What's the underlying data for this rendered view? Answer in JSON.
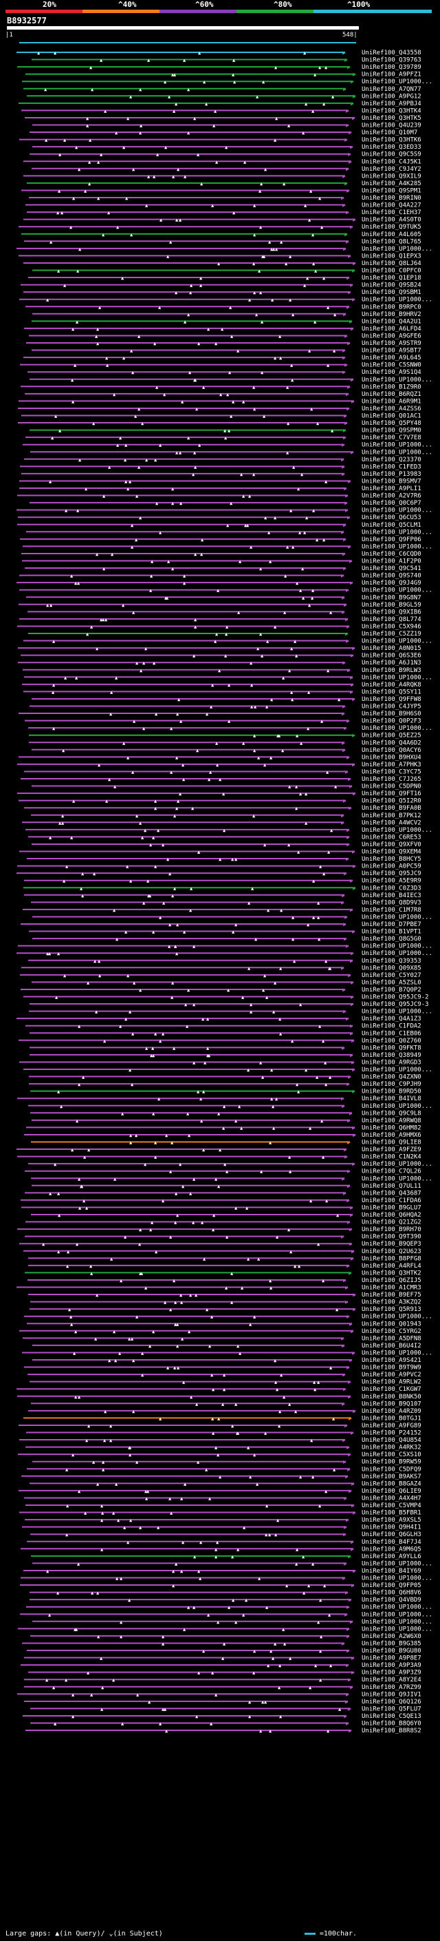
{
  "header": {
    "query_id": "B8932577",
    "legend_labels": [
      "20%",
      "^40%",
      "^60%",
      "^80%",
      "^100%"
    ],
    "legend_colors": [
      "#e8232d",
      "#f27b1e",
      "#8a3db8",
      "#22a83b",
      "#2ebcd8"
    ]
  },
  "axis": {
    "start_label": "|1",
    "end_label": "548|"
  },
  "footer": {
    "gap_text": "Large gaps: ▲(in Query)/ ⌄(in Subject)",
    "scale_text": "=100char."
  },
  "chart_data": {
    "type": "alignment",
    "query_length": 548,
    "title": "B8932577",
    "hits": [
      {
        "id": "UniRef100_Q43558",
        "identity": 100
      },
      {
        "id": "UniRef100_Q39763",
        "identity": 80
      },
      {
        "id": "UniRef100_Q39789",
        "identity": 80
      },
      {
        "id": "UniRef100_A9PFZ1",
        "identity": 80
      },
      {
        "id": "UniRef100_UP1000...",
        "identity": 80
      },
      {
        "id": "UniRef100_A7QN77",
        "identity": 80
      },
      {
        "id": "UniRef100_A9PG12",
        "identity": 80
      },
      {
        "id": "UniRef100_A9PBJ4",
        "identity": 80
      },
      {
        "id": "UniRef100_Q3HTK4",
        "identity": 60
      },
      {
        "id": "UniRef100_Q3HTK5",
        "identity": 60
      },
      {
        "id": "UniRef100_Q4U239",
        "identity": 60
      },
      {
        "id": "UniRef100_Q10M7",
        "identity": 60
      },
      {
        "id": "UniRef100_Q3HTK6",
        "identity": 60
      },
      {
        "id": "UniRef100_Q3ED33",
        "identity": 60
      },
      {
        "id": "UniRef100_Q9C5S9",
        "identity": 60
      },
      {
        "id": "UniRef100_C4J5K1",
        "identity": 60
      },
      {
        "id": "UniRef100_C9J4Y2",
        "identity": 60
      },
      {
        "id": "UniRef100_Q9XIL9",
        "identity": 60
      },
      {
        "id": "UniRef100_A4K285",
        "identity": 80
      },
      {
        "id": "UniRef100_Q9SPM1",
        "identity": 60
      },
      {
        "id": "UniRef100_B9RIN0",
        "identity": 60
      },
      {
        "id": "UniRef100_Q4A227",
        "identity": 60
      },
      {
        "id": "UniRef100_C1EH37",
        "identity": 60
      },
      {
        "id": "UniRef100_A4S0T0",
        "identity": 60
      },
      {
        "id": "UniRef100_Q9TUK5",
        "identity": 60
      },
      {
        "id": "UniRef100_A4L605",
        "identity": 80
      },
      {
        "id": "UniRef100_Q8L765",
        "identity": 60
      },
      {
        "id": "UniRef100_UP1000...",
        "identity": 60
      },
      {
        "id": "UniRef100_Q1EPX3",
        "identity": 60
      },
      {
        "id": "UniRef100_Q8LJ64",
        "identity": 60
      },
      {
        "id": "UniRef100_C0PFC0",
        "identity": 80
      },
      {
        "id": "UniRef100_Q1EP18",
        "identity": 60
      },
      {
        "id": "UniRef100_Q9SB24",
        "identity": 60
      },
      {
        "id": "UniRef100_Q9SBM1",
        "identity": 60
      },
      {
        "id": "UniRef100_UP1000...",
        "identity": 60
      },
      {
        "id": "UniRef100_B9RPC0",
        "identity": 60
      },
      {
        "id": "UniRef100_B9HRV2",
        "identity": 60
      },
      {
        "id": "UniRef100_Q4A2U1",
        "identity": 80
      },
      {
        "id": "UniRef100_A6LFD4",
        "identity": 60
      },
      {
        "id": "UniRef100_A9GFE6",
        "identity": 60
      },
      {
        "id": "UniRef100_A9STR9",
        "identity": 60
      },
      {
        "id": "UniRef100_A9SBT7",
        "identity": 60
      },
      {
        "id": "UniRef100_A9L645",
        "identity": 60
      },
      {
        "id": "UniRef100_C5SNW0",
        "identity": 60
      },
      {
        "id": "UniRef100_A9S1Q4",
        "identity": 60
      },
      {
        "id": "UniRef100_UP1000...",
        "identity": 60
      },
      {
        "id": "UniRef100_B1Z9R0",
        "identity": 60
      },
      {
        "id": "UniRef100_B6RQZ1",
        "identity": 60
      },
      {
        "id": "UniRef100_A6R9M1",
        "identity": 60
      },
      {
        "id": "UniRef100_A4ZSS6",
        "identity": 60
      },
      {
        "id": "UniRef100_Q01AC1",
        "identity": 60
      },
      {
        "id": "UniRef100_Q5PY48",
        "identity": 60
      },
      {
        "id": "UniRef100_Q9SPM0",
        "identity": 80
      },
      {
        "id": "UniRef100_C7V7E8",
        "identity": 60
      },
      {
        "id": "UniRef100_UP1000...",
        "identity": 60
      },
      {
        "id": "UniRef100_UP1000...",
        "identity": 60
      },
      {
        "id": "UniRef100_Q23370",
        "identity": 60
      },
      {
        "id": "UniRef100_C1FED3",
        "identity": 60
      },
      {
        "id": "UniRef100_P13983",
        "identity": 60
      },
      {
        "id": "UniRef100_B9SMV7",
        "identity": 60
      },
      {
        "id": "UniRef100_A9PLI1",
        "identity": 60
      },
      {
        "id": "UniRef100_A2V7R6",
        "identity": 60
      },
      {
        "id": "UniRef100_Q0C6P7",
        "identity": 60
      },
      {
        "id": "UniRef100_UP1000...",
        "identity": 60
      },
      {
        "id": "UniRef100_Q6CU53",
        "identity": 60
      },
      {
        "id": "UniRef100_Q5CLM1",
        "identity": 60
      },
      {
        "id": "UniRef100_UP1000...",
        "identity": 60
      },
      {
        "id": "UniRef100_Q9FP06",
        "identity": 60
      },
      {
        "id": "UniRef100_UP1000...",
        "identity": 60
      },
      {
        "id": "UniRef100_C6CQD0",
        "identity": 60
      },
      {
        "id": "UniRef100_A1F2P0",
        "identity": 60
      },
      {
        "id": "UniRef100_Q9C541",
        "identity": 60
      },
      {
        "id": "UniRef100_Q9S740",
        "identity": 60
      },
      {
        "id": "UniRef100_Q9J4G9",
        "identity": 60
      },
      {
        "id": "UniRef100_UP1000...",
        "identity": 60
      },
      {
        "id": "UniRef100_B9G8N7",
        "identity": 60
      },
      {
        "id": "UniRef100_B9GL59",
        "identity": 60
      },
      {
        "id": "UniRef100_Q9XIB6",
        "identity": 60
      },
      {
        "id": "UniRef100_Q8L774",
        "identity": 60
      },
      {
        "id": "UniRef100_C5X946",
        "identity": 60
      },
      {
        "id": "UniRef100_C5ZZ19",
        "identity": 80
      },
      {
        "id": "UniRef100_UP1000...",
        "identity": 60
      },
      {
        "id": "UniRef100_A0N015",
        "identity": 60
      },
      {
        "id": "UniRef100_Q6S3E6",
        "identity": 60
      },
      {
        "id": "UniRef100_A6J1N3",
        "identity": 60
      },
      {
        "id": "UniRef100_B9RLW3",
        "identity": 60
      },
      {
        "id": "UniRef100_UP1000...",
        "identity": 60
      },
      {
        "id": "UniRef100_A4RQK8",
        "identity": 60
      },
      {
        "id": "UniRef100_Q5SY11",
        "identity": 60
      },
      {
        "id": "UniRef100_Q9FFW8",
        "identity": 60
      },
      {
        "id": "UniRef100_C4JYP5",
        "identity": 60
      },
      {
        "id": "UniRef100_B9H6S0",
        "identity": 60
      },
      {
        "id": "UniRef100_Q0P2F3",
        "identity": 60
      },
      {
        "id": "UniRef100_UP1000...",
        "identity": 60
      },
      {
        "id": "UniRef100_Q5EZ25",
        "identity": 80
      },
      {
        "id": "UniRef100_Q4A6D2",
        "identity": 60
      },
      {
        "id": "UniRef100_Q0ACY6",
        "identity": 60
      },
      {
        "id": "UniRef100_B9HXU4",
        "identity": 60
      },
      {
        "id": "UniRef100_A7PHK3",
        "identity": 60
      },
      {
        "id": "UniRef100_C3YC75",
        "identity": 60
      },
      {
        "id": "UniRef100_C7J265",
        "identity": 60
      },
      {
        "id": "UniRef100_C5DPN0",
        "identity": 60
      },
      {
        "id": "UniRef100_Q9FT16",
        "identity": 60
      },
      {
        "id": "UniRef100_Q5I2R0",
        "identity": 60
      },
      {
        "id": "UniRef100_B9FA0B",
        "identity": 60
      },
      {
        "id": "UniRef100_B7PK12",
        "identity": 60
      },
      {
        "id": "UniRef100_A4WCV2",
        "identity": 60
      },
      {
        "id": "UniRef100_UP1000...",
        "identity": 60
      },
      {
        "id": "UniRef100_C6RE53",
        "identity": 60
      },
      {
        "id": "UniRef100_Q9XFV0",
        "identity": 60
      },
      {
        "id": "UniRef100_Q9XEM4",
        "identity": 60
      },
      {
        "id": "UniRef100_B8HCY5",
        "identity": 60
      },
      {
        "id": "UniRef100_A0PC59",
        "identity": 60
      },
      {
        "id": "UniRef100_Q95JC9",
        "identity": 60
      },
      {
        "id": "UniRef100_A5E9R9",
        "identity": 60
      },
      {
        "id": "UniRef100_C0Z3D3",
        "identity": 80
      },
      {
        "id": "UniRef100_B4IEC3",
        "identity": 60
      },
      {
        "id": "UniRef100_Q8D9V3",
        "identity": 60
      },
      {
        "id": "UniRef100_C1M7R8",
        "identity": 60
      },
      {
        "id": "UniRef100_UP1000...",
        "identity": 60
      },
      {
        "id": "UniRef100_D7PBE7",
        "identity": 60
      },
      {
        "id": "UniRef100_B1VPT1",
        "identity": 60
      },
      {
        "id": "UniRef100_Q8G5G0",
        "identity": 60
      },
      {
        "id": "UniRef100_UP1000...",
        "identity": 60
      },
      {
        "id": "UniRef100_UP1000...",
        "identity": 60
      },
      {
        "id": "UniRef100_Q39353",
        "identity": 60
      },
      {
        "id": "UniRef100_Q09X85",
        "identity": 60
      },
      {
        "id": "UniRef100_C5Y027",
        "identity": 60
      },
      {
        "id": "UniRef100_A5ZSL0",
        "identity": 60
      },
      {
        "id": "UniRef100_B7Q0P2",
        "identity": 60
      },
      {
        "id": "UniRef100_Q95JC9-2",
        "identity": 60
      },
      {
        "id": "UniRef100_Q95JC9-3",
        "identity": 60
      },
      {
        "id": "UniRef100_UP1000...",
        "identity": 60
      },
      {
        "id": "UniRef100_Q4A1Z3",
        "identity": 60
      },
      {
        "id": "UniRef100_C1FDA2",
        "identity": 60
      },
      {
        "id": "UniRef100_C1EB06",
        "identity": 60
      },
      {
        "id": "UniRef100_Q0Z760",
        "identity": 60
      },
      {
        "id": "UniRef100_Q9FKT8",
        "identity": 60
      },
      {
        "id": "UniRef100_Q38949",
        "identity": 60
      },
      {
        "id": "UniRef100_A9RGD3",
        "identity": 60
      },
      {
        "id": "UniRef100_UP1000...",
        "identity": 60
      },
      {
        "id": "UniRef100_Q4ZXN0",
        "identity": 60
      },
      {
        "id": "UniRef100_C9PJH9",
        "identity": 60
      },
      {
        "id": "UniRef100_B9RD50",
        "identity": 80
      },
      {
        "id": "UniRef100_B4IVL8",
        "identity": 60
      },
      {
        "id": "UniRef100_UP1000...",
        "identity": 60
      },
      {
        "id": "UniRef100_Q9C9L8",
        "identity": 60
      },
      {
        "id": "UniRef100_A9RWQ8",
        "identity": 60
      },
      {
        "id": "UniRef100_Q6HM82",
        "identity": 60
      },
      {
        "id": "UniRef100_A9HMX6",
        "identity": 60
      },
      {
        "id": "UniRef100_Q9LIE8",
        "identity": 40
      },
      {
        "id": "UniRef100_A9FZE9",
        "identity": 60
      },
      {
        "id": "UniRef100_C1N2K4",
        "identity": 60
      },
      {
        "id": "UniRef100_UP1000...",
        "identity": 60
      },
      {
        "id": "UniRef100_C7QL26",
        "identity": 60
      },
      {
        "id": "UniRef100_UP1000...",
        "identity": 60
      },
      {
        "id": "UniRef100_Q7UL11",
        "identity": 60
      },
      {
        "id": "UniRef100_Q43687",
        "identity": 60
      },
      {
        "id": "UniRef100_C1FDA6",
        "identity": 60
      },
      {
        "id": "UniRef100_B9GLU7",
        "identity": 60
      },
      {
        "id": "UniRef100_Q6HQA2",
        "identity": 60
      },
      {
        "id": "UniRef100_Q21ZG2",
        "identity": 60
      },
      {
        "id": "UniRef100_B9RH70",
        "identity": 60
      },
      {
        "id": "UniRef100_Q9T390",
        "identity": 60
      },
      {
        "id": "UniRef100_B9QEP3",
        "identity": 60
      },
      {
        "id": "UniRef100_Q2U623",
        "identity": 60
      },
      {
        "id": "UniRef100_B8PFG8",
        "identity": 60
      },
      {
        "id": "UniRef100_A4RFL4",
        "identity": 60
      },
      {
        "id": "UniRef100_Q3HTK2",
        "identity": 80
      },
      {
        "id": "UniRef100_Q6ZIJ5",
        "identity": 60
      },
      {
        "id": "UniRef100_A1CMR3",
        "identity": 60
      },
      {
        "id": "UniRef100_B9EF75",
        "identity": 60
      },
      {
        "id": "UniRef100_A3KZQ2",
        "identity": 60
      },
      {
        "id": "UniRef100_Q5R913",
        "identity": 60
      },
      {
        "id": "UniRef100_UP1000...",
        "identity": 60
      },
      {
        "id": "UniRef100_Q01943",
        "identity": 60
      },
      {
        "id": "UniRef100_C5YRG2",
        "identity": 60
      },
      {
        "id": "UniRef100_A5DFN8",
        "identity": 60
      },
      {
        "id": "UniRef100_B6U4I2",
        "identity": 60
      },
      {
        "id": "UniRef100_UP1000...",
        "identity": 60
      },
      {
        "id": "UniRef100_A9S421",
        "identity": 60
      },
      {
        "id": "UniRef100_B9T9W9",
        "identity": 60
      },
      {
        "id": "UniRef100_A9PVC2",
        "identity": 60
      },
      {
        "id": "UniRef100_A9RLW2",
        "identity": 60
      },
      {
        "id": "UniRef100_C1KGW7",
        "identity": 60
      },
      {
        "id": "UniRef100_B8NK50",
        "identity": 60
      },
      {
        "id": "UniRef100_B9Q107",
        "identity": 60
      },
      {
        "id": "UniRef100_A4RZ09",
        "identity": 60
      },
      {
        "id": "UniRef100_B0TGJ1",
        "identity": 40
      },
      {
        "id": "UniRef100_A9FG89",
        "identity": 60
      },
      {
        "id": "UniRef100_P24152",
        "identity": 60
      },
      {
        "id": "UniRef100_Q4U854",
        "identity": 60
      },
      {
        "id": "UniRef100_A4RK32",
        "identity": 60
      },
      {
        "id": "UniRef100_C5XS10",
        "identity": 60
      },
      {
        "id": "UniRef100_B9RW59",
        "identity": 60
      },
      {
        "id": "UniRef100_C5DFQ9",
        "identity": 60
      },
      {
        "id": "UniRef100_B9AKS7",
        "identity": 60
      },
      {
        "id": "UniRef100_B8GAZ4",
        "identity": 60
      },
      {
        "id": "UniRef100_Q6LIE9",
        "identity": 60
      },
      {
        "id": "UniRef100_A4X4H7",
        "identity": 60
      },
      {
        "id": "UniRef100_C5VMP4",
        "identity": 60
      },
      {
        "id": "UniRef100_B5FBR1",
        "identity": 60
      },
      {
        "id": "UniRef100_A9XSL5",
        "identity": 60
      },
      {
        "id": "UniRef100_Q9H4I1",
        "identity": 60
      },
      {
        "id": "UniRef100_Q6GLH3",
        "identity": 60
      },
      {
        "id": "UniRef100_B4F7J4",
        "identity": 60
      },
      {
        "id": "UniRef100_A9M6Q5",
        "identity": 60
      },
      {
        "id": "UniRef100_A9YLL6",
        "identity": 80
      },
      {
        "id": "UniRef100_UP1000...",
        "identity": 60
      },
      {
        "id": "UniRef100_B4IY69",
        "identity": 60
      },
      {
        "id": "UniRef100_UP1000...",
        "identity": 60
      },
      {
        "id": "UniRef100_Q9FP05",
        "identity": 60
      },
      {
        "id": "UniRef100_Q6H8V6",
        "identity": 60
      },
      {
        "id": "UniRef100_Q4VBD9",
        "identity": 60
      },
      {
        "id": "UniRef100_UP1000...",
        "identity": 60
      },
      {
        "id": "UniRef100_UP1000...",
        "identity": 60
      },
      {
        "id": "UniRef100_UP1000...",
        "identity": 60
      },
      {
        "id": "UniRef100_UP1000...",
        "identity": 60
      },
      {
        "id": "UniRef100_A2W6X0",
        "identity": 60
      },
      {
        "id": "UniRef100_B9G385",
        "identity": 60
      },
      {
        "id": "UniRef100_B9GU80",
        "identity": 60
      },
      {
        "id": "UniRef100_A9P8E7",
        "identity": 60
      },
      {
        "id": "UniRef100_A9P3A9",
        "identity": 60
      },
      {
        "id": "UniRef100_A9P3Z9",
        "identity": 60
      },
      {
        "id": "UniRef100_A8Y2E4",
        "identity": 60
      },
      {
        "id": "UniRef100_A7RZ99",
        "identity": 60
      },
      {
        "id": "UniRef100_Q9JIV1",
        "identity": 60
      },
      {
        "id": "UniRef100_Q6Q126",
        "identity": 60
      },
      {
        "id": "UniRef100_Q5FLU7",
        "identity": 60
      },
      {
        "id": "UniRef100_C5QE13",
        "identity": 60
      },
      {
        "id": "UniRef100_B8Q6Y0",
        "identity": 60
      },
      {
        "id": "UniRef100_B8R8S2",
        "identity": 60
      }
    ]
  }
}
